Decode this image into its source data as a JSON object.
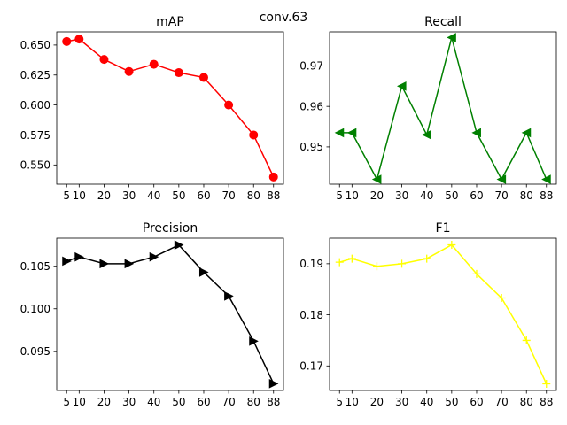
{
  "suptitle": "conv.63",
  "chart_data": [
    {
      "type": "line",
      "title": "mAP",
      "color": "#ff0000",
      "marker": "circle",
      "x": [
        5,
        10,
        20,
        30,
        40,
        50,
        60,
        70,
        80,
        88
      ],
      "xticks": [
        5,
        10,
        20,
        30,
        40,
        50,
        60,
        70,
        80,
        88
      ],
      "values": [
        0.653,
        0.655,
        0.638,
        0.628,
        0.634,
        0.627,
        0.623,
        0.6,
        0.575,
        0.54
      ],
      "yticks": [
        0.55,
        0.575,
        0.6,
        0.625,
        0.65
      ],
      "ytick_labels": [
        "0.550",
        "0.575",
        "0.600",
        "0.625",
        "0.650"
      ],
      "xlim": [
        1,
        92
      ],
      "ylim": [
        0.534,
        0.661
      ],
      "grid": false
    },
    {
      "type": "line",
      "title": "Recall",
      "color": "#008000",
      "marker": "triangle-left",
      "x": [
        5,
        10,
        20,
        30,
        40,
        50,
        60,
        70,
        80,
        88
      ],
      "xticks": [
        5,
        10,
        20,
        30,
        40,
        50,
        60,
        70,
        80,
        88
      ],
      "values": [
        0.9535,
        0.9535,
        0.942,
        0.965,
        0.953,
        0.977,
        0.9535,
        0.942,
        0.9535,
        0.942
      ],
      "yticks": [
        0.95,
        0.96,
        0.97
      ],
      "ytick_labels": [
        "0.95",
        "0.96",
        "0.97"
      ],
      "xlim": [
        1,
        92
      ],
      "ylim": [
        0.9408,
        0.9784
      ],
      "grid": false
    },
    {
      "type": "line",
      "title": "Precision",
      "color": "#000000",
      "marker": "triangle-right",
      "x": [
        5,
        10,
        20,
        30,
        40,
        50,
        60,
        70,
        80,
        88
      ],
      "xticks": [
        5,
        10,
        20,
        30,
        40,
        50,
        60,
        70,
        80,
        88
      ],
      "values": [
        0.1056,
        0.1061,
        0.1053,
        0.1053,
        0.1061,
        0.1075,
        0.1043,
        0.1015,
        0.0962,
        0.0912
      ],
      "yticks": [
        0.095,
        0.1,
        0.105
      ],
      "ytick_labels": [
        "0.095",
        "0.100",
        "0.105"
      ],
      "xlim": [
        1,
        92
      ],
      "ylim": [
        0.0904,
        0.1083
      ],
      "grid": false
    },
    {
      "type": "line",
      "title": "F1",
      "color": "#ffff00",
      "marker": "plus",
      "x": [
        5,
        10,
        20,
        30,
        40,
        50,
        60,
        70,
        80,
        88
      ],
      "xticks": [
        5,
        10,
        20,
        30,
        40,
        50,
        60,
        70,
        80,
        88
      ],
      "values": [
        0.1903,
        0.191,
        0.1895,
        0.19,
        0.191,
        0.1937,
        0.188,
        0.1833,
        0.175,
        0.1665
      ],
      "yticks": [
        0.17,
        0.18,
        0.19
      ],
      "ytick_labels": [
        "0.17",
        "0.18",
        "0.19"
      ],
      "xlim": [
        1,
        92
      ],
      "ylim": [
        0.1652,
        0.195
      ],
      "grid": false
    }
  ]
}
